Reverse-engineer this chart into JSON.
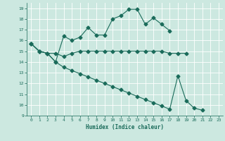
{
  "xlabel": "Humidex (Indice chaleur)",
  "bg_color": "#cce8e0",
  "grid_color": "#ffffff",
  "line_color": "#1a6b5a",
  "xlim": [
    -0.5,
    23.5
  ],
  "ylim": [
    9,
    19.5
  ],
  "yticks": [
    9,
    10,
    11,
    12,
    13,
    14,
    15,
    16,
    17,
    18,
    19
  ],
  "xticks": [
    0,
    1,
    2,
    3,
    4,
    5,
    6,
    7,
    8,
    9,
    10,
    11,
    12,
    13,
    14,
    15,
    16,
    17,
    18,
    19,
    20,
    21,
    22,
    23
  ],
  "line1_x": [
    0,
    1,
    2,
    3,
    4,
    5,
    6,
    7,
    8,
    9,
    10,
    11,
    12,
    13,
    14,
    15,
    16,
    17
  ],
  "line1_y": [
    15.7,
    15.0,
    14.8,
    14.0,
    16.4,
    16.0,
    16.3,
    17.2,
    16.5,
    16.5,
    18.0,
    18.3,
    18.9,
    18.9,
    17.5,
    18.1,
    17.5,
    16.9
  ],
  "line2_x": [
    0,
    1,
    2,
    3,
    4,
    5,
    6,
    7,
    8,
    9,
    10,
    11,
    12,
    13,
    14,
    15,
    16,
    17,
    18,
    19
  ],
  "line2_y": [
    15.7,
    15.0,
    14.8,
    14.8,
    14.5,
    14.8,
    15.0,
    15.0,
    15.0,
    15.0,
    15.0,
    15.0,
    15.0,
    15.0,
    15.0,
    15.0,
    15.0,
    14.8,
    14.8,
    14.8
  ],
  "line3_x": [
    0,
    1,
    2,
    3,
    4,
    5,
    6,
    7,
    8,
    9,
    10,
    11,
    12,
    13,
    14,
    15,
    16,
    17,
    18,
    19,
    20,
    21
  ],
  "line3_y": [
    15.7,
    15.0,
    14.8,
    14.0,
    13.5,
    13.2,
    12.9,
    12.6,
    12.3,
    12.0,
    11.7,
    11.4,
    11.1,
    10.8,
    10.5,
    10.2,
    9.9,
    9.6,
    12.7,
    10.4,
    9.7,
    9.5
  ],
  "markersize": 2.5
}
